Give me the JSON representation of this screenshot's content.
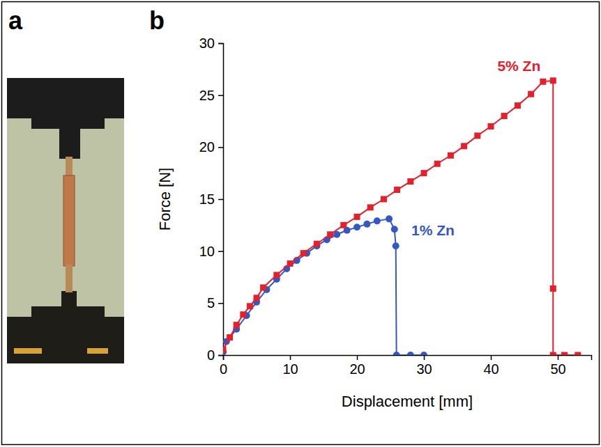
{
  "figure": {
    "panel_labels": [
      "a",
      "b"
    ]
  },
  "chart_data": {
    "type": "line",
    "x_label": "Displacement [mm]",
    "y_label": "Force [N]",
    "xlim": [
      0,
      55
    ],
    "xticks": [
      0,
      10,
      20,
      30,
      40,
      50
    ],
    "ylim": [
      0,
      30
    ],
    "yticks": [
      0,
      5,
      10,
      15,
      20,
      25,
      30
    ],
    "grid": false,
    "series": [
      {
        "name": "5% Zn",
        "color": "#e3202b",
        "marker": "square",
        "line_style": "solid",
        "x": [
          0,
          1,
          2,
          3,
          4,
          5,
          6,
          8,
          10,
          12,
          14,
          16,
          18,
          20,
          22,
          24,
          26,
          28,
          30,
          32,
          34,
          36,
          38,
          40,
          42,
          44,
          46,
          47.8,
          49.3,
          49.3,
          49.3,
          51,
          53
        ],
        "values": [
          0.5,
          1.7,
          2.9,
          3.9,
          4.7,
          5.5,
          6.5,
          7.7,
          8.8,
          9.8,
          10.7,
          11.6,
          12.5,
          13.3,
          14.2,
          15,
          15.9,
          16.7,
          17.5,
          18.4,
          19.2,
          20.1,
          21.1,
          22,
          23,
          24,
          25.1,
          26.3,
          26.4,
          6.4,
          0,
          0,
          0
        ]
      },
      {
        "name": "1% Zn",
        "color": "#3457c4",
        "marker": "circle",
        "line_style": "solid",
        "x": [
          0,
          0.5,
          2,
          3.5,
          5,
          6.5,
          8,
          9.5,
          11,
          12.5,
          14,
          15.5,
          17,
          18.5,
          20,
          21.5,
          23,
          24.8,
          25.6,
          25.8,
          25.9,
          28,
          30
        ],
        "values": [
          0.3,
          1.3,
          2.5,
          3.8,
          5.1,
          6.3,
          7.3,
          8.3,
          9.1,
          9.8,
          10.5,
          11.1,
          11.6,
          12,
          12.3,
          12.6,
          12.9,
          13.1,
          12.1,
          10.5,
          0,
          0,
          0
        ]
      }
    ]
  }
}
